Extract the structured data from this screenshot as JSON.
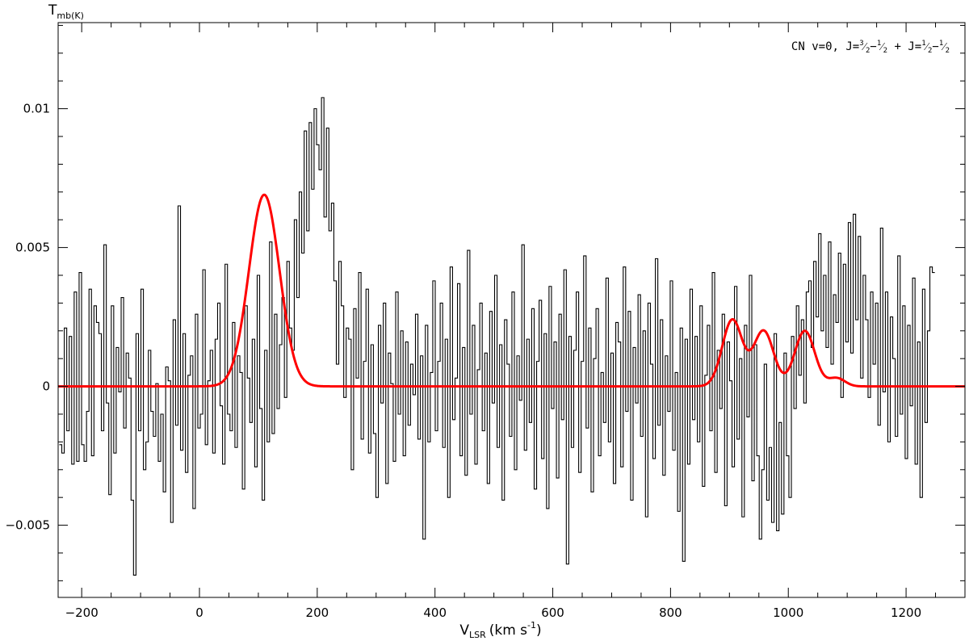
{
  "chart_data": {
    "type": "line",
    "title": "",
    "annotation": {
      "prefix": "CN v=0,  J=",
      "t1_num": "3",
      "t1_den": "2",
      "t2_num": "1",
      "t2_den": "2",
      "plus": "  +  J=",
      "t3_num": "1",
      "t3_den": "2",
      "t4_num": "1",
      "t4_den": "2"
    },
    "xlabel": {
      "main": "V",
      "sub": "LSR",
      "unit": "(km s",
      "sup": "-1",
      "close": ")"
    },
    "ylabel": {
      "main": "T",
      "sub": "mb(K)"
    },
    "xlim": [
      -240,
      1300
    ],
    "ylim": [
      -0.0076,
      0.0131
    ],
    "x_ticks": [
      -200,
      0,
      200,
      400,
      600,
      800,
      1000,
      1200
    ],
    "x_tick_labels": [
      "−200",
      "0",
      "200",
      "400",
      "600",
      "800",
      "1000",
      "1200"
    ],
    "y_ticks": [
      -0.005,
      0,
      0.005,
      0.01
    ],
    "y_tick_labels": [
      "−0.005",
      "0",
      "0.005",
      "0.01"
    ],
    "grid": false,
    "series": [
      {
        "role": "observed spectrum",
        "style": "histogram",
        "color": "#000000",
        "x_start": -238,
        "x_step": 4.2,
        "values": [
          -0.0021,
          -0.0024,
          0.0021,
          -0.0016,
          0.0018,
          -0.0028,
          0.0034,
          -0.0027,
          0.0041,
          -0.0021,
          -0.0027,
          -0.0009,
          0.0035,
          -0.0025,
          0.0029,
          0.0023,
          0.0019,
          -0.0016,
          0.0051,
          -0.0006,
          -0.0039,
          0.0029,
          -0.0024,
          0.0014,
          -0.0002,
          0.0032,
          -0.0015,
          0.0012,
          0.0003,
          -0.0041,
          -0.0068,
          0.0019,
          -0.0016,
          0.0035,
          -0.003,
          -0.002,
          0.0013,
          -0.0009,
          -0.0018,
          0.0001,
          -0.0027,
          -0.001,
          -0.0038,
          0.0007,
          0.0002,
          -0.0049,
          0.0024,
          -0.0014,
          0.0065,
          -0.0023,
          0.0019,
          -0.0031,
          0.0004,
          0.0011,
          -0.0044,
          0.0026,
          -0.0015,
          -0.001,
          0.0042,
          -0.0021,
          0.0002,
          0.0013,
          -0.0024,
          0.0017,
          0.003,
          -0.0007,
          -0.0028,
          0.0044,
          -0.001,
          -0.0016,
          0.0023,
          -0.0022,
          0.0011,
          0.0005,
          -0.0037,
          0.0029,
          0.0003,
          -0.0013,
          0.0017,
          -0.0029,
          0.004,
          -0.0008,
          -0.0041,
          0.0013,
          -0.002,
          0.0052,
          -0.0017,
          0.0026,
          -0.0008,
          0.0015,
          0.0032,
          -0.0004,
          0.0045,
          0.0021,
          0.0013,
          0.006,
          0.0032,
          0.007,
          0.0048,
          0.0092,
          0.0056,
          0.0095,
          0.0071,
          0.01,
          0.0087,
          0.0078,
          0.0104,
          0.0061,
          0.0093,
          0.0056,
          0.0066,
          0.0038,
          0.0008,
          0.0045,
          0.0029,
          -0.0004,
          0.0021,
          0.0017,
          -0.003,
          0.0028,
          0.0003,
          0.0041,
          -0.0019,
          0.0009,
          0.0035,
          -0.0024,
          0.0015,
          -0.0017,
          -0.004,
          0.0022,
          -0.0006,
          0.003,
          -0.0035,
          0.0012,
          0.0001,
          -0.0027,
          0.0034,
          -0.001,
          0.002,
          -0.0025,
          0.0016,
          -0.0014,
          0.0008,
          -0.0003,
          0.0026,
          -0.0019,
          0.0011,
          -0.0055,
          0.0022,
          -0.002,
          0.0005,
          0.0038,
          -0.0016,
          0.0009,
          0.003,
          -0.0022,
          0.0017,
          -0.004,
          0.0043,
          -0.0012,
          0.0003,
          0.0037,
          -0.0025,
          0.0014,
          -0.0032,
          0.0049,
          -0.001,
          0.0022,
          -0.0028,
          0.0006,
          0.003,
          -0.0016,
          0.0012,
          -0.0035,
          0.0027,
          -0.0006,
          0.004,
          -0.0022,
          0.0015,
          -0.0041,
          0.0024,
          0.0008,
          -0.0018,
          0.0034,
          -0.003,
          0.0011,
          -0.0005,
          0.0051,
          -0.0023,
          0.0017,
          -0.0013,
          0.0028,
          -0.0037,
          0.0009,
          0.0031,
          -0.0026,
          0.0019,
          -0.0044,
          0.0036,
          -0.0008,
          0.0016,
          -0.0033,
          0.0026,
          -0.0012,
          0.0042,
          -0.0064,
          0.0018,
          -0.0022,
          0.0013,
          0.0034,
          -0.0031,
          0.0009,
          0.0047,
          -0.0015,
          0.0021,
          -0.0038,
          0.001,
          0.0028,
          -0.0025,
          0.0005,
          -0.0013,
          0.0039,
          -0.002,
          0.0012,
          -0.0035,
          0.0023,
          0.0016,
          -0.0029,
          0.0043,
          -0.0009,
          0.0027,
          -0.0041,
          0.0014,
          -0.0006,
          0.0033,
          -0.0018,
          0.002,
          -0.0047,
          0.003,
          0.0008,
          -0.0026,
          0.0046,
          -0.0014,
          0.0024,
          -0.0032,
          0.0011,
          -0.0009,
          0.0038,
          -0.0023,
          0.0005,
          -0.0045,
          0.0021,
          -0.0063,
          0.0017,
          -0.0028,
          0.0035,
          -0.0012,
          0.0018,
          -0.002,
          0.0029,
          -0.0036,
          0.0004,
          0.0022,
          -0.0016,
          0.0041,
          -0.0031,
          0.0013,
          -0.0008,
          0.0026,
          -0.0043,
          0.0016,
          0.0002,
          -0.0029,
          0.0036,
          -0.0019,
          0.001,
          -0.0047,
          0.0022,
          -0.0011,
          0.004,
          -0.0034,
          0.0015,
          -0.0025,
          -0.0055,
          -0.003,
          0.0008,
          -0.0041,
          -0.0022,
          -0.0049,
          0.0019,
          -0.0052,
          -0.0013,
          -0.0046,
          0.0012,
          -0.0025,
          -0.004,
          0.0018,
          -0.0008,
          0.0029,
          0.0004,
          0.0024,
          -0.0006,
          0.0034,
          0.0038,
          0.0014,
          0.0045,
          0.0025,
          0.0055,
          0.002,
          0.004,
          0.0014,
          0.0052,
          0.0008,
          0.0033,
          0.0023,
          0.0048,
          -0.0004,
          0.0044,
          0.0016,
          0.0059,
          0.0012,
          0.0062,
          0.0024,
          0.0054,
          0.0003,
          0.004,
          0.0024,
          -0.0004,
          0.0034,
          0.0008,
          0.003,
          -0.0014,
          0.0057,
          -0.0002,
          0.0034,
          -0.002,
          0.0025,
          0.001,
          -0.0018,
          0.0047,
          -0.001,
          0.0029,
          -0.0026,
          0.0022,
          -0.0007,
          0.0039,
          -0.0028,
          0.0016,
          -0.004,
          0.0035,
          -0.0013,
          0.002,
          0.0043,
          0.0041
        ],
        "show_in_legend": false
      },
      {
        "role": "model fit",
        "style": "line",
        "color": "#ff0000",
        "components": [
          {
            "center": 110,
            "amplitude": 0.0069,
            "sigma": 26
          },
          {
            "center": 905,
            "amplitude": 0.0024,
            "sigma": 17
          },
          {
            "center": 958,
            "amplitude": 0.002,
            "sigma": 17
          },
          {
            "center": 1028,
            "amplitude": 0.002,
            "sigma": 17
          },
          {
            "center": 1082,
            "amplitude": 0.0003,
            "sigma": 14
          }
        ],
        "show_in_legend": false
      }
    ]
  }
}
